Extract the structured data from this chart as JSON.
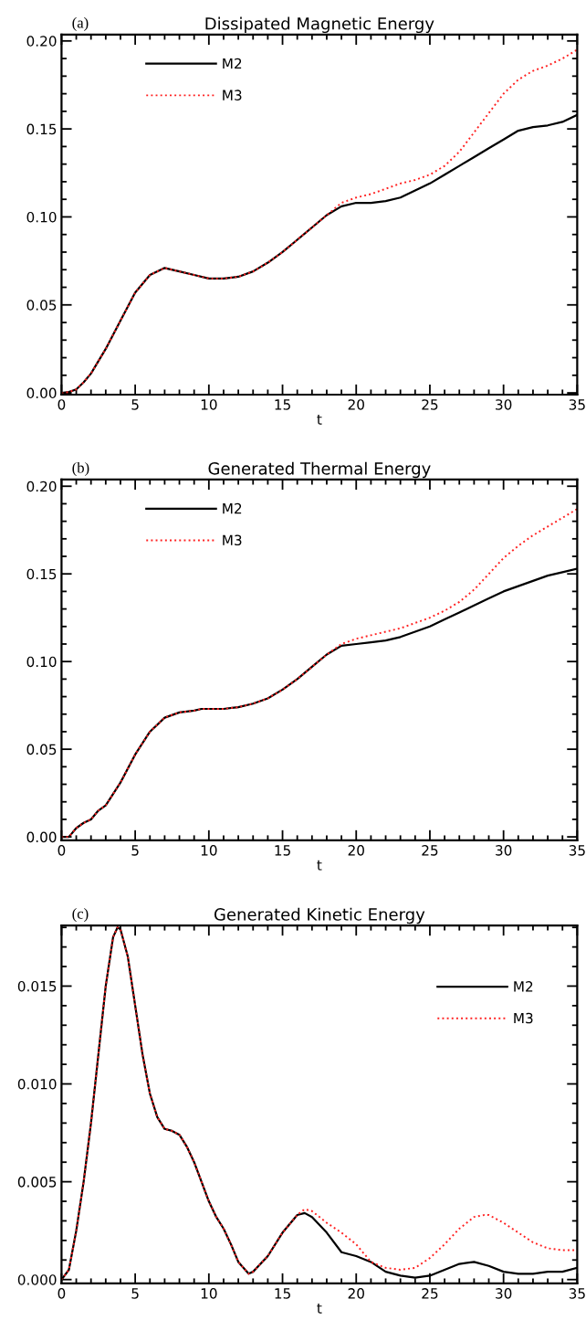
{
  "chart_data": [
    {
      "type": "line",
      "title": "Dissipated Magnetic Energy",
      "xlabel": "t",
      "annotations": [
        "(a)"
      ],
      "legend": "top left",
      "xlim": [
        0,
        35
      ],
      "xticks": [
        0,
        5,
        10,
        15,
        20,
        25,
        30,
        35
      ],
      "ylim": [
        -0.001,
        0.2036
      ],
      "yticks": [
        {
          "value": 0,
          "label": "0.00"
        },
        0.05,
        {
          "value": 0.1,
          "label": "0.10"
        },
        0.15,
        {
          "value": 0.2,
          "label": "0.20"
        }
      ],
      "series": [
        {
          "name": "M2",
          "color": "#000000",
          "line_style": "solid",
          "x": [
            0,
            0.5,
            1,
            1.5,
            2,
            3,
            4,
            5,
            6,
            7,
            8,
            9,
            10,
            11,
            12,
            13,
            14,
            15,
            16,
            17,
            18,
            19,
            20,
            21,
            22,
            23,
            24,
            25,
            26,
            27,
            28,
            29,
            30,
            31,
            32,
            33,
            34,
            35
          ],
          "values": [
            0,
            0.0005,
            0.002,
            0.006,
            0.011,
            0.025,
            0.041,
            0.057,
            0.067,
            0.071,
            0.069,
            0.067,
            0.065,
            0.065,
            0.066,
            0.069,
            0.074,
            0.08,
            0.087,
            0.094,
            0.101,
            0.106,
            0.108,
            0.108,
            0.109,
            0.111,
            0.115,
            0.119,
            0.124,
            0.129,
            0.134,
            0.139,
            0.144,
            0.149,
            0.151,
            0.152,
            0.154,
            0.158
          ]
        },
        {
          "name": "M3",
          "color": "#ff2020",
          "line_style": "dotted",
          "x": [
            0,
            0.5,
            1,
            1.5,
            2,
            3,
            4,
            5,
            6,
            7,
            8,
            9,
            10,
            11,
            12,
            13,
            14,
            15,
            16,
            17,
            18,
            19,
            20,
            21,
            22,
            23,
            24,
            25,
            26,
            27,
            28,
            29,
            30,
            31,
            32,
            33,
            34,
            35
          ],
          "values": [
            0,
            0.0005,
            0.002,
            0.006,
            0.011,
            0.025,
            0.041,
            0.057,
            0.067,
            0.071,
            0.069,
            0.067,
            0.065,
            0.065,
            0.066,
            0.069,
            0.074,
            0.08,
            0.087,
            0.094,
            0.101,
            0.108,
            0.111,
            0.113,
            0.116,
            0.119,
            0.121,
            0.124,
            0.129,
            0.137,
            0.148,
            0.159,
            0.17,
            0.178,
            0.183,
            0.186,
            0.19,
            0.195
          ]
        }
      ]
    },
    {
      "type": "line",
      "title": "Generated Thermal Energy",
      "xlabel": "t",
      "annotations": [
        "(b)"
      ],
      "legend": "top left",
      "xlim": [
        0,
        35
      ],
      "xticks": [
        0,
        5,
        10,
        15,
        20,
        25,
        30,
        35
      ],
      "ylim": [
        -0.002,
        0.2038
      ],
      "yticks": [
        {
          "value": 0,
          "label": "0.00"
        },
        0.05,
        {
          "value": 0.1,
          "label": "0.10"
        },
        0.15,
        {
          "value": 0.2,
          "label": "0.20"
        }
      ],
      "series": [
        {
          "name": "M2",
          "color": "#000000",
          "line_style": "solid",
          "x": [
            0,
            0.5,
            1,
            1.5,
            2,
            2.5,
            3,
            4,
            5,
            6,
            7,
            8,
            9,
            9.5,
            10,
            11,
            12,
            13,
            14,
            15,
            16,
            17,
            18,
            19,
            20,
            21,
            22,
            23,
            24,
            25,
            26,
            27,
            28,
            29,
            30,
            31,
            32,
            33,
            34,
            35
          ],
          "values": [
            0,
            0,
            0.005,
            0.008,
            0.01,
            0.015,
            0.018,
            0.031,
            0.047,
            0.06,
            0.068,
            0.071,
            0.072,
            0.073,
            0.073,
            0.073,
            0.074,
            0.076,
            0.079,
            0.084,
            0.09,
            0.097,
            0.104,
            0.109,
            0.11,
            0.111,
            0.112,
            0.114,
            0.117,
            0.12,
            0.124,
            0.128,
            0.132,
            0.136,
            0.14,
            0.143,
            0.146,
            0.149,
            0.151,
            0.153
          ]
        },
        {
          "name": "M3",
          "color": "#ff2020",
          "line_style": "dotted",
          "x": [
            0,
            0.5,
            1,
            1.5,
            2,
            2.5,
            3,
            4,
            5,
            6,
            7,
            8,
            9,
            9.5,
            10,
            11,
            12,
            13,
            14,
            15,
            16,
            17,
            18,
            19,
            20,
            21,
            22,
            23,
            24,
            25,
            26,
            27,
            28,
            29,
            30,
            31,
            32,
            33,
            34,
            35
          ],
          "values": [
            0,
            0,
            0.005,
            0.008,
            0.01,
            0.015,
            0.018,
            0.031,
            0.047,
            0.06,
            0.068,
            0.071,
            0.072,
            0.073,
            0.073,
            0.073,
            0.074,
            0.076,
            0.079,
            0.084,
            0.09,
            0.097,
            0.104,
            0.11,
            0.113,
            0.115,
            0.117,
            0.119,
            0.122,
            0.125,
            0.129,
            0.134,
            0.141,
            0.15,
            0.159,
            0.166,
            0.172,
            0.177,
            0.182,
            0.187
          ]
        }
      ]
    },
    {
      "type": "line",
      "title": "Generated Kinetic Energy",
      "xlabel": "t",
      "annotations": [
        "(c)"
      ],
      "legend": "top right",
      "xlim": [
        0,
        35
      ],
      "xticks": [
        0,
        5,
        10,
        15,
        20,
        25,
        30,
        35
      ],
      "ylim": [
        -0.0002,
        0.0181
      ],
      "yticks": [
        {
          "value": 0,
          "label": "0.000"
        },
        0.005,
        {
          "value": 0.01,
          "label": "0.010"
        },
        0.015
      ],
      "series": [
        {
          "name": "M2",
          "color": "#000000",
          "line_style": "solid",
          "x": [
            0,
            0.5,
            1,
            1.5,
            2,
            2.5,
            3,
            3.5,
            3.8,
            4,
            4.5,
            5,
            5.5,
            6,
            6.5,
            7,
            7.5,
            8,
            8.5,
            9,
            9.5,
            10,
            10.5,
            11,
            11.5,
            12,
            12.7,
            13,
            14,
            15,
            16,
            16.5,
            17,
            18,
            19,
            20,
            21,
            22,
            23,
            24,
            25,
            26,
            27,
            28,
            29,
            30,
            31,
            32,
            33,
            34,
            35
          ],
          "values": [
            0,
            0.0005,
            0.0025,
            0.005,
            0.008,
            0.0115,
            0.015,
            0.0175,
            0.018,
            0.0179,
            0.0165,
            0.014,
            0.0115,
            0.0095,
            0.0083,
            0.0077,
            0.0076,
            0.0074,
            0.0068,
            0.006,
            0.005,
            0.004,
            0.0032,
            0.0026,
            0.0018,
            0.0009,
            0.0003,
            0.0004,
            0.0012,
            0.0024,
            0.0033,
            0.0034,
            0.0032,
            0.0024,
            0.0014,
            0.0012,
            0.0009,
            0.0004,
            0.0002,
            0.0001,
            0.0002,
            0.0005,
            0.0008,
            0.0009,
            0.0007,
            0.0004,
            0.0003,
            0.0003,
            0.0004,
            0.0004,
            0.0006
          ]
        },
        {
          "name": "M3",
          "color": "#ff2020",
          "line_style": "dotted",
          "x": [
            0,
            0.5,
            1,
            1.5,
            2,
            2.5,
            3,
            3.5,
            3.8,
            4,
            4.5,
            5,
            5.5,
            6,
            6.5,
            7,
            7.5,
            8,
            8.5,
            9,
            9.5,
            10,
            10.5,
            11,
            11.5,
            12,
            12.7,
            13,
            14,
            15,
            16,
            16.5,
            17,
            18,
            19,
            20,
            21,
            22,
            23,
            24,
            25,
            26,
            27,
            28,
            28.7,
            29,
            30,
            31,
            32,
            33,
            34,
            35
          ],
          "values": [
            0,
            0.0005,
            0.0025,
            0.005,
            0.008,
            0.0115,
            0.015,
            0.0175,
            0.018,
            0.0179,
            0.0165,
            0.014,
            0.0115,
            0.0095,
            0.0083,
            0.0077,
            0.0076,
            0.0074,
            0.0068,
            0.006,
            0.005,
            0.004,
            0.0032,
            0.0026,
            0.0018,
            0.0009,
            0.0003,
            0.0004,
            0.0012,
            0.0024,
            0.0033,
            0.0036,
            0.0035,
            0.0029,
            0.0024,
            0.0018,
            0.0009,
            0.0006,
            0.0005,
            0.0006,
            0.0011,
            0.0018,
            0.0026,
            0.0032,
            0.0033,
            0.0033,
            0.0029,
            0.0024,
            0.0019,
            0.0016,
            0.0015,
            0.0015
          ]
        }
      ]
    }
  ]
}
